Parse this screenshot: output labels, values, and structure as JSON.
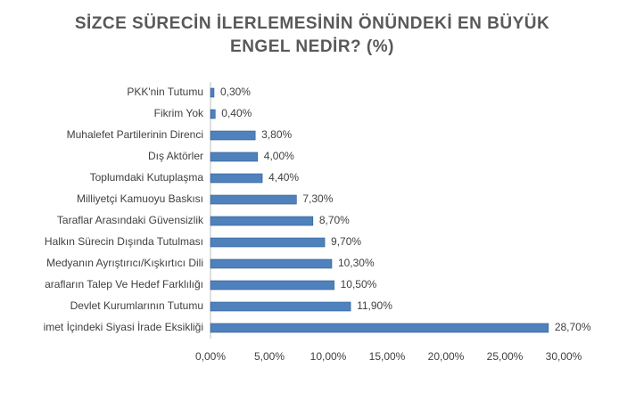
{
  "chart_data": {
    "type": "bar",
    "orientation": "horizontal",
    "title": "SİZCE SÜRECİN İLERLEMESİNİN ÖNÜNDEKİ EN BÜYÜK ENGEL NEDİR? (%)",
    "categories": [
      "PKK'nin Tutumu",
      "Fikrim Yok",
      "Muhalefet Partilerinin Direnci",
      "Dış Aktörler",
      "Toplumdaki Kutuplaşma",
      "Milliyetçi Kamuoyu Baskısı",
      "Taraflar Arasındaki Güvensizlik",
      "Halkın Sürecin Dışında Tutulması",
      "Medyanın Ayrıştırıcı/Kışkırtıcı Dili",
      "arafların Talep Ve Hedef Farklılığı",
      "Devlet Kurumlarının Tutumu",
      "imet İçindeki Siyasi İrade Eksikliği"
    ],
    "values": [
      0.3,
      0.4,
      3.8,
      4.0,
      4.4,
      7.3,
      8.7,
      9.7,
      10.3,
      10.5,
      11.9,
      28.7
    ],
    "value_labels": [
      "0,30%",
      "0,40%",
      "3,80%",
      "4,00%",
      "4,40%",
      "7,30%",
      "8,70%",
      "9,70%",
      "10,30%",
      "10,50%",
      "11,90%",
      "28,70%"
    ],
    "color": "#4f81bd",
    "xlim": [
      0,
      30
    ],
    "xticks": [
      {
        "value": 0,
        "label": "0,00%"
      },
      {
        "value": 5,
        "label": "5,00%"
      },
      {
        "value": 10,
        "label": "10,00%"
      },
      {
        "value": 15,
        "label": "15,00%"
      },
      {
        "value": 20,
        "label": "20,00%"
      },
      {
        "value": 25,
        "label": "25,00%"
      },
      {
        "value": 30,
        "label": "30,00%"
      }
    ],
    "grid": false
  }
}
